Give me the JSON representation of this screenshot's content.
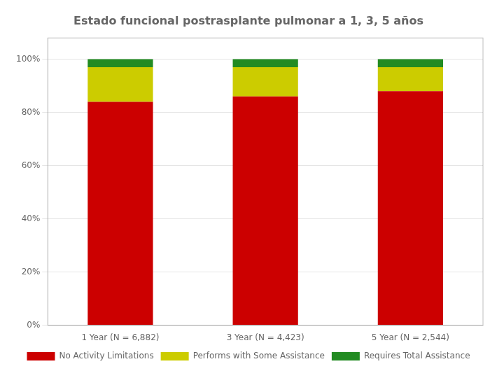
{
  "chart_data": {
    "type": "bar",
    "stacked": true,
    "title": "Estado funcional postrasplante pulmonar a 1, 3, 5 años",
    "categories": [
      "1 Year (N = 6,882)",
      "3 Year (N = 4,423)",
      "5 Year (N = 2,544)"
    ],
    "series": [
      {
        "name": "No Activity Limitations",
        "color": "#CC0000",
        "values": [
          84,
          86,
          88
        ]
      },
      {
        "name": "Performs with Some Assistance",
        "color": "#CCCC00",
        "values": [
          13,
          11,
          9
        ]
      },
      {
        "name": "Requires Total Assistance",
        "color": "#228B22",
        "values": [
          3,
          3,
          3
        ]
      }
    ],
    "ylim": [
      0,
      108
    ],
    "yticks": [
      {
        "value": 0,
        "label": "0%"
      },
      {
        "value": 20,
        "label": "20%"
      },
      {
        "value": 40,
        "label": "40%"
      },
      {
        "value": 60,
        "label": "60%"
      },
      {
        "value": 80,
        "label": "80%"
      },
      {
        "value": 100,
        "label": "100%"
      }
    ],
    "grid": true,
    "legend": "bottom"
  }
}
